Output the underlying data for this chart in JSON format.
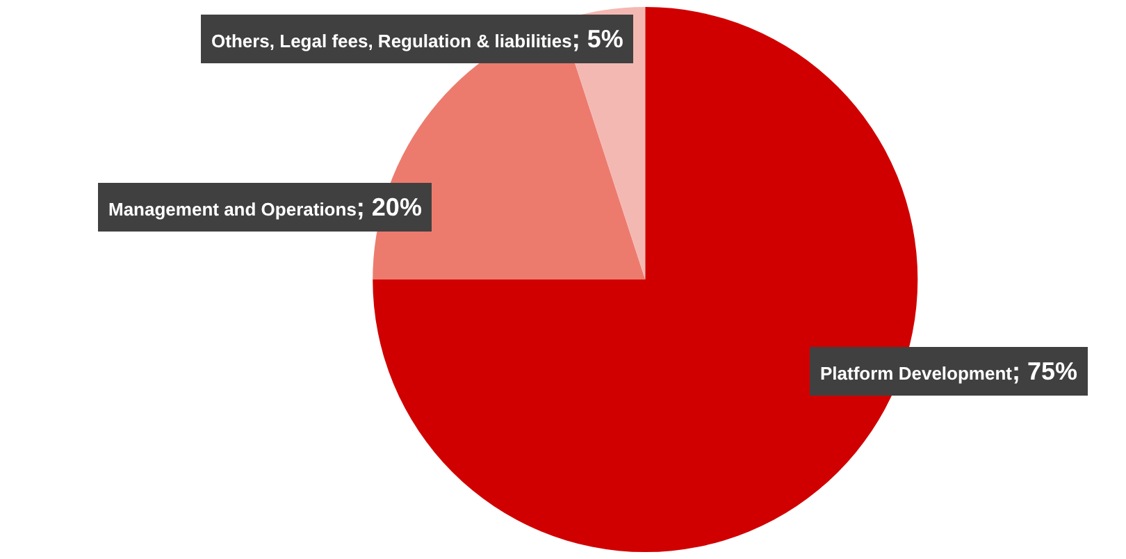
{
  "chart_data": {
    "type": "pie",
    "categories": [
      "Platform Development",
      "Management and Operations",
      "Others, Legal fees, Regulation & liabilities"
    ],
    "values": [
      75,
      20,
      5
    ],
    "colors": [
      "#d10000",
      "#ec7b6e",
      "#f4b8b2"
    ],
    "value_labels": [
      "; 75%",
      "; 20%",
      "; 5%"
    ],
    "legend": false
  }
}
